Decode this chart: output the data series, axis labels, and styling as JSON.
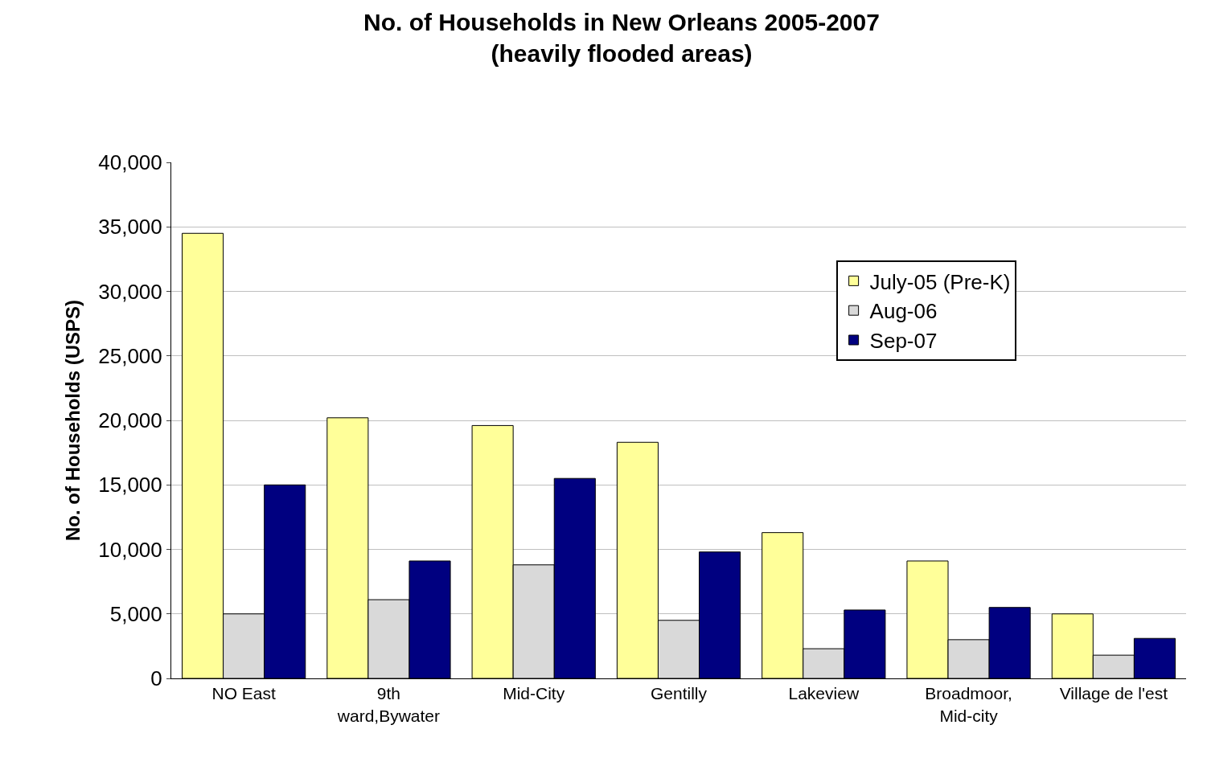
{
  "chart_data": {
    "type": "bar",
    "title": "No. of Households in New Orleans 2005-2007\n(heavily flooded areas)",
    "ylabel": "No. of Households (USPS)",
    "categories": [
      "NO East",
      "9th ward,Bywater",
      "Mid-City",
      "Gentilly",
      "Lakeview",
      "Broadmoor, Mid-city",
      "Village de l'est"
    ],
    "series": [
      {
        "name": "July-05 (Pre-K)",
        "color": "#ffff99",
        "values": [
          34500,
          20200,
          19600,
          18300,
          11300,
          9100,
          5000
        ]
      },
      {
        "name": "Aug-06",
        "color": "#d9d9d9",
        "values": [
          5000,
          6100,
          8800,
          4500,
          2300,
          3000,
          1800
        ]
      },
      {
        "name": "Sep-07",
        "color": "#000080",
        "values": [
          15000,
          9100,
          15500,
          9800,
          5300,
          5500,
          3100
        ]
      }
    ],
    "ylim": [
      0,
      40000
    ],
    "yticks": [
      {
        "value": 0,
        "label": "0"
      },
      {
        "value": 5000,
        "label": "5,000"
      },
      {
        "value": 10000,
        "label": "10,000"
      },
      {
        "value": 15000,
        "label": "15,000"
      },
      {
        "value": 20000,
        "label": "20,000"
      },
      {
        "value": 25000,
        "label": "25,000"
      },
      {
        "value": 30000,
        "label": "30,000"
      },
      {
        "value": 35000,
        "label": "35,000"
      },
      {
        "value": 40000,
        "label": "40,000"
      }
    ],
    "grid": "y",
    "legend": "top right"
  }
}
